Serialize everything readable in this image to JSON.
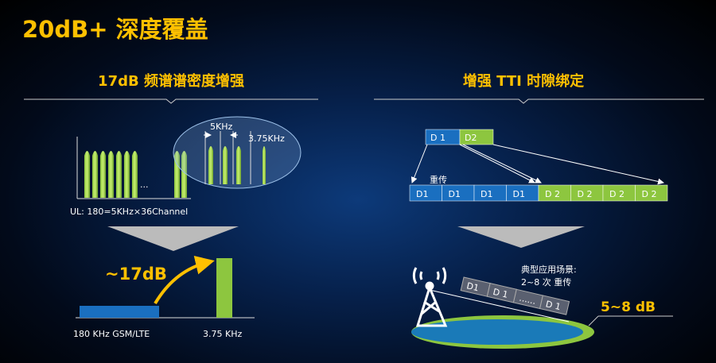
{
  "title": "20dB+ 深度覆盖",
  "left": {
    "heading": "17dB 频谱谱密度增强",
    "spacing_label": "5KHz",
    "subcarrier_label": "3.75KHz",
    "ellipsis": "...",
    "formula": "UL:  180=5KHz×36Channel",
    "gain_label": "~17dB",
    "bar_label_wide": "180 KHz GSM/LTE",
    "bar_label_narrow": "3.75 KHz"
  },
  "right": {
    "heading": "增强 TTI 时隙绑定",
    "top_blocks": [
      "D 1",
      "D2"
    ],
    "retx_label": "重传",
    "row_blocks": [
      "D1",
      "D1",
      "D1",
      "D1",
      "D 2",
      "D 2",
      "D 2",
      "D 2"
    ],
    "scenario_line1": "典型应用场景:",
    "scenario_line2": "2~8 次 重传",
    "slant_blocks": [
      "D1",
      "D 1",
      "......",
      "D 1"
    ],
    "gain_label": "5~8 dB"
  },
  "colors": {
    "accent": "#ffc000",
    "green": "#8dc63f",
    "blue": "#1a6fc0"
  }
}
